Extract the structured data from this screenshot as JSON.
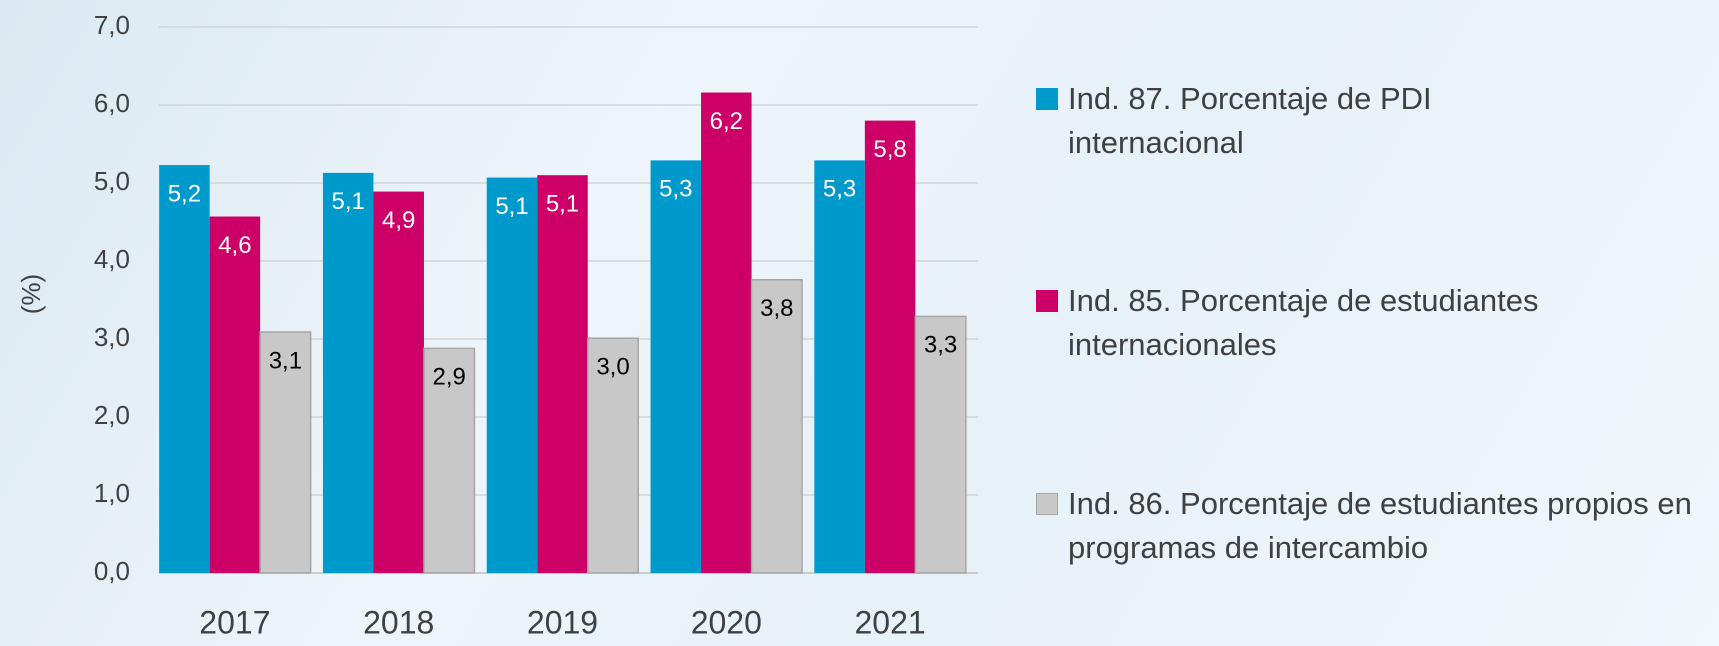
{
  "chart_data": {
    "type": "bar",
    "y_label": "(%)",
    "categories": [
      "2017",
      "2018",
      "2019",
      "2020",
      "2021"
    ],
    "series": [
      {
        "name": "Ind. 87. Porcentaje de PDI internacional",
        "color": "#0099cc",
        "values": [
          5.23,
          5.13,
          5.07,
          5.29,
          5.29
        ],
        "value_labels": [
          "5,2",
          "5,1",
          "5,1",
          "5,3",
          "5,3"
        ]
      },
      {
        "name": "Ind. 85. Porcentaje de estudiantes internacionales",
        "color": "#cc0066",
        "values": [
          4.57,
          4.89,
          5.1,
          6.16,
          5.8
        ],
        "value_labels": [
          "4,6",
          "4,9",
          "5,1",
          "6,2",
          "5,8"
        ]
      },
      {
        "name": "Ind. 86. Porcentaje de estudiantes propios en programas de intercambio",
        "color": "#c8c8c8",
        "values": [
          3.09,
          2.88,
          3.01,
          3.76,
          3.29
        ],
        "value_labels": [
          "3,1",
          "2,9",
          "3,0",
          "3,8",
          "3,3"
        ]
      }
    ],
    "ylim": [
      0,
      7
    ],
    "yticks": [
      {
        "value": 0,
        "label": "0,0"
      },
      {
        "value": 1,
        "label": "1,0"
      },
      {
        "value": 2,
        "label": "2,0"
      },
      {
        "value": 3,
        "label": "3,0"
      },
      {
        "value": 4,
        "label": "4,0"
      },
      {
        "value": 5,
        "label": "5,0"
      },
      {
        "value": 6,
        "label": "6,0"
      },
      {
        "value": 7,
        "label": "7,0"
      }
    ],
    "grid": true
  }
}
